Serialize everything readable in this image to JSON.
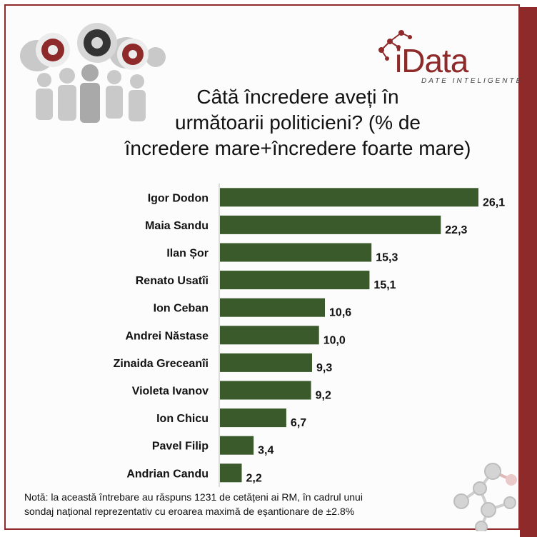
{
  "chart_data": {
    "type": "bar",
    "orientation": "horizontal",
    "title": "Câtă încredere aveți în următoarii politicieni? (% de încredere mare+încredere foarte mare)",
    "title_lines": [
      "Câtă încredere aveți în",
      "următoarii politicieni? (% de",
      "încredere mare+încredere foarte mare)"
    ],
    "categories": [
      "Igor Dodon",
      "Maia Sandu",
      "Ilan Șor",
      "Renato Usatîi",
      "Ion Ceban",
      "Andrei Năstase",
      "Zinaida Greceanîi",
      "Violeta Ivanov",
      "Ion Chicu",
      "Pavel Filip",
      "Andrian Candu"
    ],
    "values": [
      26.1,
      22.3,
      15.3,
      15.1,
      10.6,
      10.0,
      9.3,
      9.2,
      6.7,
      3.4,
      2.2
    ],
    "value_labels": [
      "26,1",
      "22,3",
      "15,3",
      "15,1",
      "10,6",
      "10,0",
      "9,3",
      "9,2",
      "6,7",
      "3,4",
      "2,2"
    ],
    "xlim": [
      0,
      28
    ],
    "bar_color": "#3b5a2c",
    "grid": false,
    "legend": "none"
  },
  "brand": {
    "logo_text": "iData",
    "tagline": "DATE INTELIGENTE",
    "accent_color": "#8f2a2a"
  },
  "note": {
    "line1": "Notă: la această întrebare au răspuns 1231 de cetățeni ai RM, în cadrul unui",
    "line2": "sondaj național reprezentativ  cu eroarea maximă de eșantionare de ±2.8%"
  },
  "icons": {
    "header_illustration": "people-speech-bubbles-icon",
    "logo_mark": "molecule-network-icon",
    "corner_decoration": "molecule-network-icon"
  }
}
